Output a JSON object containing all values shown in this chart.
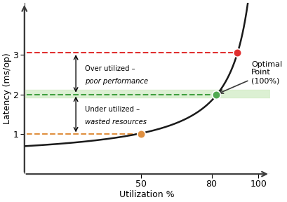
{
  "xlabel": "Utilization %",
  "ylabel": "Latency (ms/op)",
  "xlim": [
    0,
    105
  ],
  "ylim": [
    0,
    4.3
  ],
  "yticks": [
    1,
    2,
    3
  ],
  "xticks": [
    50,
    80,
    100
  ],
  "red_dashed_y": 3.05,
  "green_dashed_y": 2.0,
  "orange_dashed_y": 1.0,
  "green_band_y_low": 1.92,
  "green_band_y_high": 2.12,
  "point_orange": [
    50,
    1.0
  ],
  "point_green": [
    82,
    2.0
  ],
  "point_red": [
    91,
    3.05
  ],
  "color_red": "#e03030",
  "color_green": "#50aa50",
  "color_orange": "#e09040",
  "color_red_dashed": "#e03030",
  "color_green_dashed": "#40a040",
  "color_orange_dashed": "#e09040",
  "color_green_band": "#d4edc8",
  "annotation_optimal": "Optimal\nPoint\n(100%)",
  "curve_color": "#1a1a1a",
  "background_color": "#ffffff",
  "curve_a": 0.342,
  "curve_b": 37.6,
  "curve_k": 105.0
}
